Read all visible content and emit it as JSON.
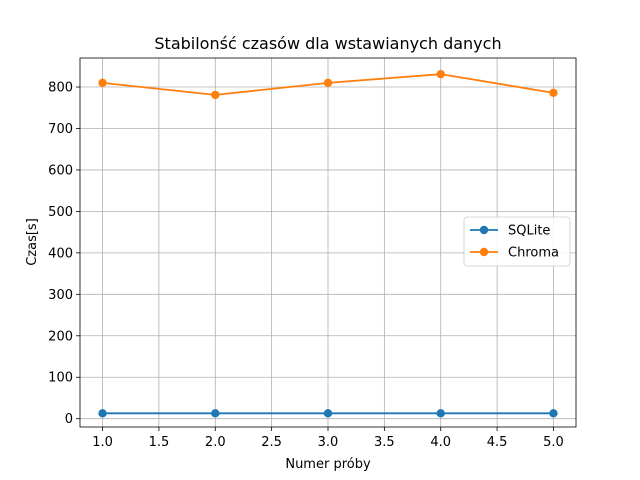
{
  "chart_data": {
    "type": "line",
    "title": "Stabilonść czasów dla wstawianych danych",
    "xlabel": "Numer próby",
    "ylabel": "Czas[s]",
    "x": [
      1.0,
      2.0,
      3.0,
      4.0,
      5.0
    ],
    "xlim": [
      0.8,
      5.2
    ],
    "ylim": [
      -20,
      870
    ],
    "xticks": [
      "1.0",
      "1.5",
      "2.0",
      "2.5",
      "3.0",
      "3.5",
      "4.0",
      "4.5",
      "5.0"
    ],
    "yticks": [
      "0",
      "100",
      "200",
      "300",
      "400",
      "500",
      "600",
      "700",
      "800"
    ],
    "grid": true,
    "legend_position": "center-right",
    "series": [
      {
        "name": "SQLite",
        "color": "#1f77b4",
        "values": [
          13,
          13,
          13,
          13,
          13
        ]
      },
      {
        "name": "Chroma",
        "color": "#ff7f0e",
        "values": [
          810,
          781,
          810,
          831,
          786
        ]
      }
    ]
  }
}
